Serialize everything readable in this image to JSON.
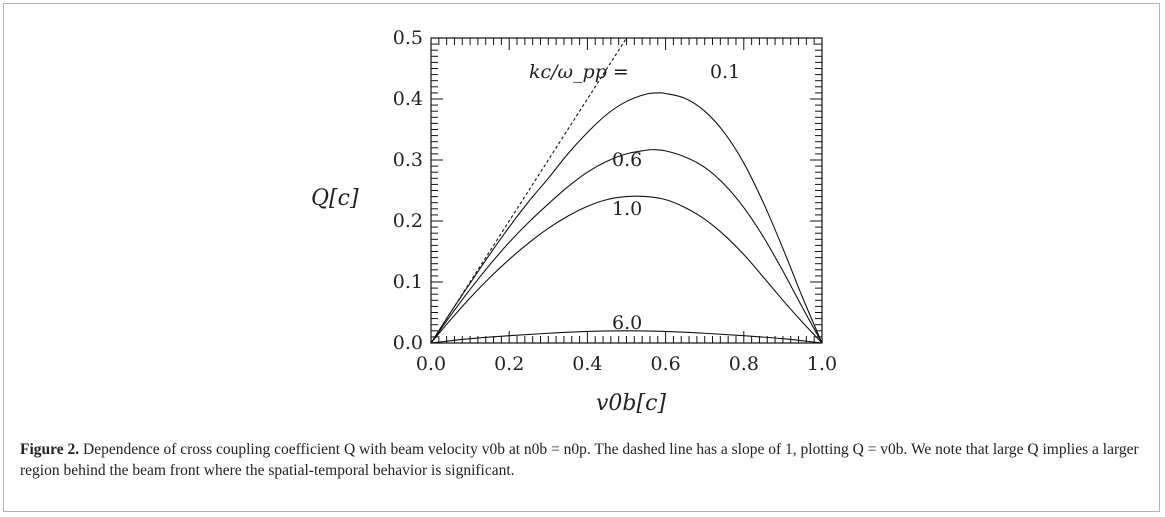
{
  "chart_data": {
    "type": "line",
    "xlabel": "v0b[c]",
    "ylabel": "Q[c]",
    "xlim": [
      0.0,
      1.0
    ],
    "ylim": [
      0.0,
      0.5
    ],
    "x_ticks": [
      "0.0",
      "0.2",
      "0.4",
      "0.6",
      "0.8",
      "1.0"
    ],
    "y_ticks": [
      "0.0",
      "0.1",
      "0.2",
      "0.3",
      "0.4",
      "0.5"
    ],
    "legend_prefix": "kc/ω_pp = ",
    "series": [
      {
        "name": "0.1",
        "style": "solid",
        "x": [
          0,
          0.05,
          0.1,
          0.15,
          0.2,
          0.25,
          0.3,
          0.35,
          0.4,
          0.45,
          0.5,
          0.55,
          0.58,
          0.6,
          0.65,
          0.7,
          0.75,
          0.8,
          0.85,
          0.9,
          0.95,
          1.0
        ],
        "y": [
          0,
          0.05,
          0.098,
          0.145,
          0.19,
          0.232,
          0.27,
          0.31,
          0.345,
          0.375,
          0.396,
          0.408,
          0.41,
          0.409,
          0.401,
          0.38,
          0.345,
          0.295,
          0.23,
          0.155,
          0.075,
          0
        ]
      },
      {
        "name": "0.6",
        "style": "solid",
        "x": [
          0,
          0.05,
          0.1,
          0.15,
          0.2,
          0.25,
          0.3,
          0.35,
          0.4,
          0.45,
          0.5,
          0.55,
          0.57,
          0.6,
          0.65,
          0.7,
          0.75,
          0.8,
          0.85,
          0.9,
          0.95,
          1.0
        ],
        "y": [
          0,
          0.045,
          0.088,
          0.128,
          0.165,
          0.198,
          0.228,
          0.256,
          0.28,
          0.298,
          0.31,
          0.316,
          0.317,
          0.315,
          0.305,
          0.288,
          0.26,
          0.222,
          0.174,
          0.118,
          0.058,
          0
        ]
      },
      {
        "name": "1.0",
        "style": "solid",
        "x": [
          0,
          0.05,
          0.1,
          0.15,
          0.2,
          0.25,
          0.3,
          0.35,
          0.4,
          0.45,
          0.5,
          0.55,
          0.6,
          0.65,
          0.7,
          0.75,
          0.8,
          0.85,
          0.9,
          0.95,
          1.0
        ],
        "y": [
          0,
          0.038,
          0.074,
          0.107,
          0.137,
          0.164,
          0.188,
          0.208,
          0.224,
          0.235,
          0.24,
          0.24,
          0.235,
          0.222,
          0.203,
          0.177,
          0.145,
          0.108,
          0.07,
          0.034,
          0
        ]
      },
      {
        "name": "6.0",
        "style": "solid",
        "x": [
          0,
          0.1,
          0.2,
          0.3,
          0.4,
          0.5,
          0.6,
          0.7,
          0.8,
          0.9,
          1.0
        ],
        "y": [
          0,
          0.007,
          0.012,
          0.016,
          0.019,
          0.02,
          0.019,
          0.016,
          0.012,
          0.007,
          0
        ]
      },
      {
        "name": "Q = v0b",
        "style": "dashed",
        "x": [
          0,
          0.5
        ],
        "y": [
          0,
          0.5
        ]
      }
    ]
  },
  "caption": {
    "label": "Figure 2.",
    "text": "Dependence of cross coupling coefficient Q with beam velocity v0b at n0b = n0p. The dashed line has a slope of 1, plotting Q = v0b. We note that large Q implies a larger region behind the beam front where the spatial-temporal behavior is significant."
  }
}
